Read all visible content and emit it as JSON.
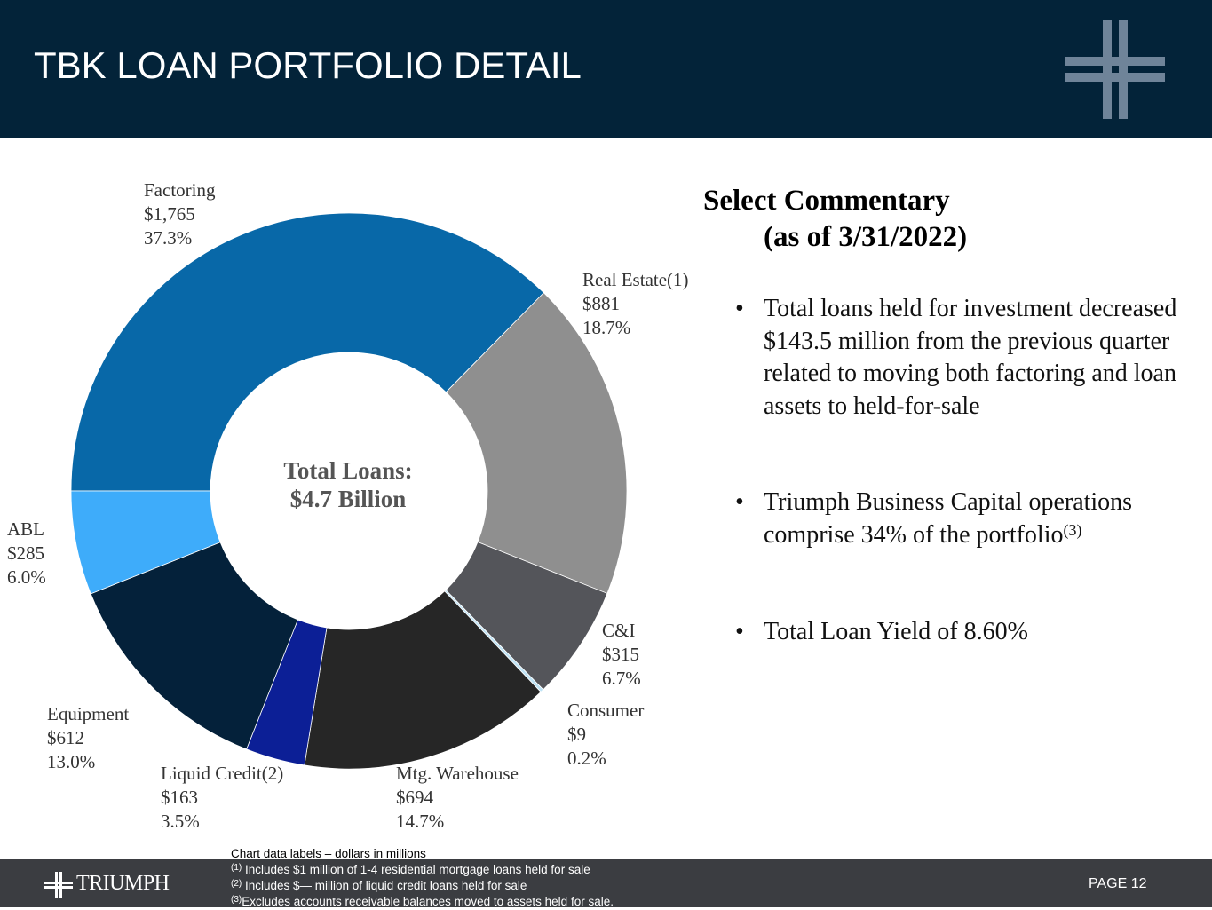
{
  "header": {
    "title": "TBK LOAN PORTFOLIO DETAIL"
  },
  "chart_data": {
    "type": "donut",
    "categories": [
      "Factoring",
      "Real Estate(1)",
      "C&I",
      "Consumer",
      "Mtg. Warehouse",
      "Liquid Credit(2)",
      "Equipment",
      "ABL"
    ],
    "values": [
      1765,
      881,
      315,
      9,
      694,
      163,
      612,
      285
    ],
    "value_labels": [
      "$1,765",
      "$881",
      "$315",
      "$9",
      "$694",
      "$163",
      "$612",
      "$285"
    ],
    "shares": [
      37.3,
      18.7,
      6.7,
      0.2,
      14.7,
      3.5,
      13.0,
      6.0
    ],
    "share_labels": [
      "37.3%",
      "18.7%",
      "6.7%",
      "0.2%",
      "14.7%",
      "3.5%",
      "13.0%",
      "6.0%"
    ],
    "colors": [
      "#0868a8",
      "#8f8f8f",
      "#54555a",
      "#bfe3f5",
      "#262626",
      "#0c1f96",
      "#04213a",
      "#3eacfa"
    ],
    "center_label": [
      "Total Loans:",
      "$4.7 Billion"
    ]
  },
  "commentary": {
    "heading": [
      "Select Commentary",
      "(as of 3/31/2022)"
    ],
    "bullets": [
      {
        "text": "Total loans held for investment decreased $143.5 million from the previous quarter related to moving both factoring and loan assets to held-for-sale"
      },
      {
        "text": "Triumph Business Capital operations comprise 34% of the portfolio",
        "note": "(3)"
      },
      {
        "text": "Total Loan Yield of 8.60%"
      }
    ]
  },
  "footnotes": [
    {
      "text": "Chart data labels – dollars in millions"
    },
    {
      "marker": "(1)",
      "text": " Includes $1 million of 1-4 residential mortgage loans held for sale"
    },
    {
      "marker": "(2)",
      "text": " Includes $— million of liquid credit loans held for sale"
    },
    {
      "marker": "(3)",
      "text": "Excludes accounts receivable balances moved to assets held for sale."
    }
  ],
  "footer": {
    "logo": "TRIUMPH",
    "page": "PAGE 12"
  }
}
